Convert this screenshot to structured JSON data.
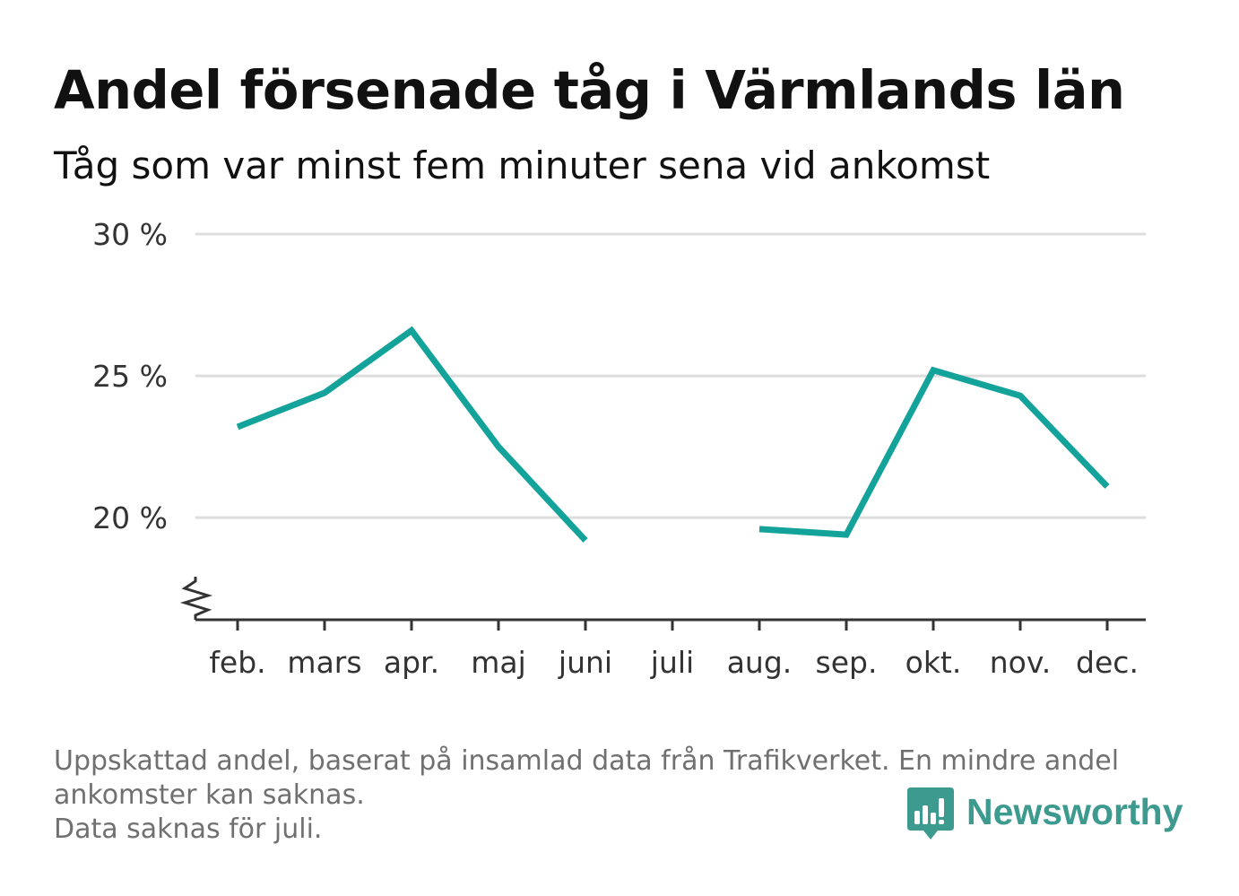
{
  "title": "Andel försenade tåg i Värmlands län",
  "subtitle": "Tåg som var minst fem minuter sena vid ankomst",
  "footnote": {
    "line1": "Uppskattad andel, baserat på insamlad data från Trafikverket. En mindre andel",
    "line2": "ankomster kan saknas.",
    "line3": "Data saknas för juli."
  },
  "logo": {
    "text": "Newsworthy",
    "color": "#3d9a8e"
  },
  "colors": {
    "line": "#13a39a",
    "grid": "#dddddd",
    "axis": "#333333"
  },
  "chart_data": {
    "type": "line",
    "categories": [
      "feb.",
      "mars",
      "apr.",
      "maj",
      "juni",
      "juli",
      "aug.",
      "sep.",
      "okt.",
      "nov.",
      "dec."
    ],
    "series": [
      {
        "values": [
          23.2,
          24.4,
          26.6,
          22.5,
          19.2,
          null,
          19.6,
          19.4,
          25.2,
          24.3,
          21.1
        ]
      }
    ],
    "y_ticks": [
      {
        "value": 20,
        "label": "20 %"
      },
      {
        "value": 25,
        "label": "25 %"
      },
      {
        "value": 30,
        "label": "30 %"
      }
    ],
    "ylim": [
      16.4,
      30
    ],
    "y_axis_break": true,
    "grid": true,
    "xlabel": "",
    "ylabel": ""
  }
}
